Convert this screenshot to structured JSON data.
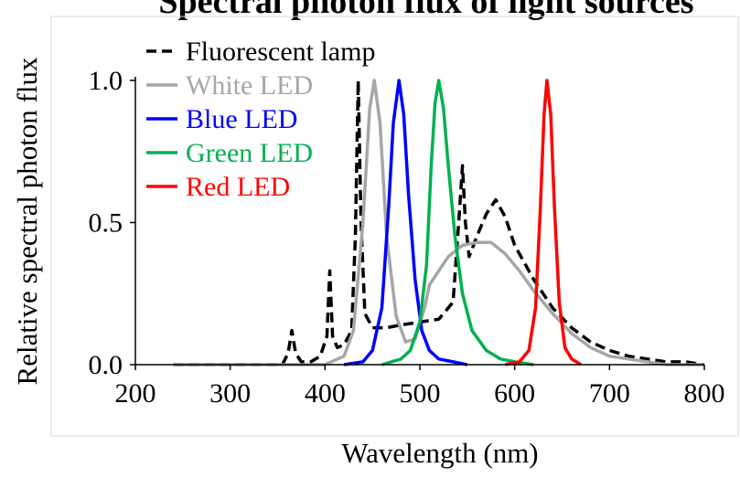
{
  "chart_data": {
    "type": "line",
    "title": "Spectral photon flux of light sources",
    "xlabel": "Wavelength (nm)",
    "ylabel": "Relative spectral photon flux",
    "xlim": [
      200,
      800
    ],
    "ylim": [
      0,
      1.0
    ],
    "x_ticks": [
      "200",
      "300",
      "400",
      "500",
      "600",
      "700",
      "800"
    ],
    "y_ticks": [
      "0.0",
      "0.5",
      "1.0"
    ],
    "grid": false,
    "legend_position": "top-left",
    "series": [
      {
        "name": "Fluorescent lamp",
        "color": "#000000",
        "dash": "dashed",
        "points": [
          [
            240,
            0
          ],
          [
            355,
            0
          ],
          [
            361,
            0.04
          ],
          [
            365,
            0.12
          ],
          [
            369,
            0.04
          ],
          [
            375,
            0.01
          ],
          [
            385,
            0.01
          ],
          [
            395,
            0.03
          ],
          [
            402,
            0.1
          ],
          [
            405,
            0.33
          ],
          [
            408,
            0.1
          ],
          [
            413,
            0.06
          ],
          [
            420,
            0.07
          ],
          [
            428,
            0.12
          ],
          [
            432,
            0.45
          ],
          [
            435,
            1.0
          ],
          [
            438,
            0.5
          ],
          [
            442,
            0.18
          ],
          [
            450,
            0.13
          ],
          [
            465,
            0.13
          ],
          [
            480,
            0.14
          ],
          [
            500,
            0.15
          ],
          [
            520,
            0.16
          ],
          [
            535,
            0.22
          ],
          [
            541,
            0.5
          ],
          [
            545,
            0.7
          ],
          [
            548,
            0.5
          ],
          [
            552,
            0.38
          ],
          [
            560,
            0.45
          ],
          [
            570,
            0.53
          ],
          [
            580,
            0.58
          ],
          [
            590,
            0.52
          ],
          [
            600,
            0.42
          ],
          [
            620,
            0.3
          ],
          [
            640,
            0.2
          ],
          [
            660,
            0.13
          ],
          [
            680,
            0.08
          ],
          [
            700,
            0.05
          ],
          [
            720,
            0.03
          ],
          [
            740,
            0.02
          ],
          [
            760,
            0.01
          ],
          [
            780,
            0.01
          ],
          [
            800,
            0
          ]
        ]
      },
      {
        "name": "White LED",
        "color": "#a6a6a6",
        "dash": "solid",
        "points": [
          [
            240,
            0
          ],
          [
            400,
            0
          ],
          [
            420,
            0.03
          ],
          [
            430,
            0.12
          ],
          [
            440,
            0.5
          ],
          [
            447,
            0.9
          ],
          [
            452,
            1.0
          ],
          [
            458,
            0.85
          ],
          [
            465,
            0.45
          ],
          [
            475,
            0.17
          ],
          [
            485,
            0.08
          ],
          [
            495,
            0.09
          ],
          [
            505,
            0.2
          ],
          [
            510,
            0.28
          ],
          [
            520,
            0.33
          ],
          [
            530,
            0.38
          ],
          [
            545,
            0.42
          ],
          [
            560,
            0.43
          ],
          [
            575,
            0.43
          ],
          [
            590,
            0.39
          ],
          [
            605,
            0.33
          ],
          [
            620,
            0.26
          ],
          [
            640,
            0.18
          ],
          [
            660,
            0.11
          ],
          [
            680,
            0.06
          ],
          [
            700,
            0.03
          ],
          [
            720,
            0.02
          ],
          [
            740,
            0.01
          ],
          [
            760,
            0
          ],
          [
            800,
            0
          ]
        ]
      },
      {
        "name": "Blue LED",
        "color": "#0000ff",
        "dash": "solid",
        "points": [
          [
            420,
            0
          ],
          [
            440,
            0.01
          ],
          [
            450,
            0.05
          ],
          [
            460,
            0.2
          ],
          [
            467,
            0.55
          ],
          [
            472,
            0.85
          ],
          [
            478,
            1.0
          ],
          [
            483,
            0.88
          ],
          [
            488,
            0.6
          ],
          [
            495,
            0.3
          ],
          [
            502,
            0.12
          ],
          [
            510,
            0.05
          ],
          [
            520,
            0.02
          ],
          [
            535,
            0.01
          ],
          [
            550,
            0
          ]
        ]
      },
      {
        "name": "Green LED",
        "color": "#00b050",
        "dash": "solid",
        "points": [
          [
            460,
            0
          ],
          [
            480,
            0.02
          ],
          [
            490,
            0.05
          ],
          [
            500,
            0.15
          ],
          [
            507,
            0.35
          ],
          [
            512,
            0.7
          ],
          [
            516,
            0.92
          ],
          [
            520,
            1.0
          ],
          [
            525,
            0.9
          ],
          [
            530,
            0.7
          ],
          [
            537,
            0.45
          ],
          [
            545,
            0.25
          ],
          [
            555,
            0.12
          ],
          [
            570,
            0.05
          ],
          [
            585,
            0.02
          ],
          [
            600,
            0.01
          ],
          [
            620,
            0
          ]
        ]
      },
      {
        "name": "Red LED",
        "color": "#ff0000",
        "dash": "solid",
        "points": [
          [
            590,
            0
          ],
          [
            605,
            0.01
          ],
          [
            615,
            0.05
          ],
          [
            622,
            0.2
          ],
          [
            627,
            0.55
          ],
          [
            631,
            0.88
          ],
          [
            634,
            1.0
          ],
          [
            638,
            0.88
          ],
          [
            642,
            0.55
          ],
          [
            647,
            0.22
          ],
          [
            653,
            0.06
          ],
          [
            660,
            0.02
          ],
          [
            670,
            0
          ]
        ]
      }
    ]
  }
}
